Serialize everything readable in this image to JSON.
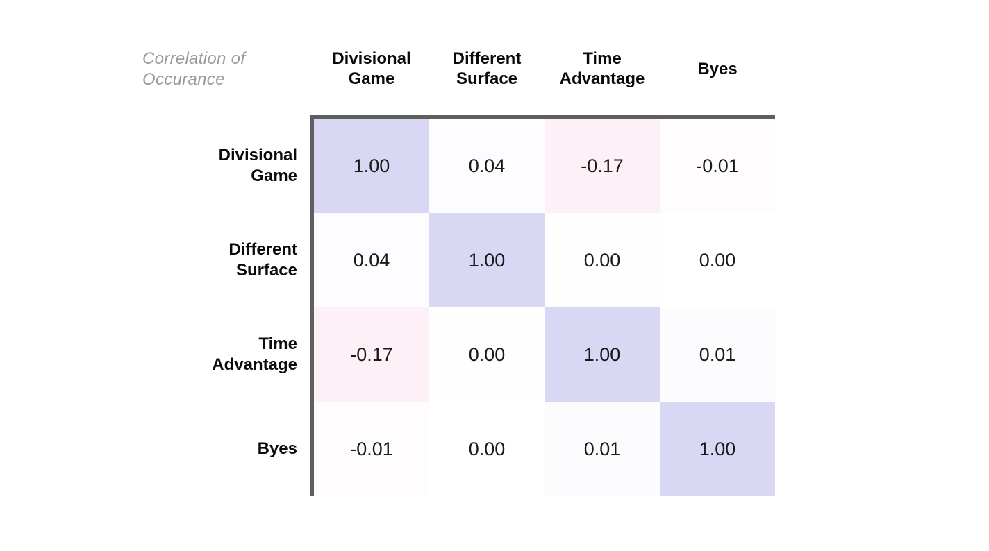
{
  "title": {
    "text": "Correlation of Occurance"
  },
  "matrix": {
    "columns": [
      "Divisional Game",
      "Different Surface",
      "Time Advantage",
      "Byes"
    ],
    "rows": [
      "Divisional Game",
      "Different Surface",
      "Time Advantage",
      "Byes"
    ],
    "values": [
      [
        "1.00",
        "0.04",
        "-0.17",
        "-0.01"
      ],
      [
        "0.04",
        "1.00",
        "0.00",
        "0.00"
      ],
      [
        "-0.17",
        "0.00",
        "1.00",
        "0.01"
      ],
      [
        "-0.01",
        "0.00",
        "0.01",
        "1.00"
      ]
    ],
    "cell_colors": [
      [
        "#d8d8f5",
        "#fdfdff",
        "#fdf0f6",
        "#fefcfd"
      ],
      [
        "#fdfdff",
        "#d8d8f5",
        "#fefeff",
        "#ffffff"
      ],
      [
        "#fdf0f6",
        "#fefeff",
        "#d8d8f5",
        "#fcfcfe"
      ],
      [
        "#fefcfd",
        "#ffffff",
        "#fcfcfe",
        "#d8d8f5"
      ]
    ]
  },
  "colors": {
    "border": "#5f5f5f",
    "title_gray": "#9b9b9b",
    "diagonal_fill": "#d8d8f5",
    "negative_fill": "#fdf0f6",
    "text": "#0a0a0a"
  },
  "chart_data": {
    "type": "heatmap",
    "title": "Correlation of Occurance",
    "x_categories": [
      "Divisional Game",
      "Different Surface",
      "Time Advantage",
      "Byes"
    ],
    "y_categories": [
      "Divisional Game",
      "Different Surface",
      "Time Advantage",
      "Byes"
    ],
    "values": [
      [
        1.0,
        0.04,
        -0.17,
        -0.01
      ],
      [
        0.04,
        1.0,
        0.0,
        0.0
      ],
      [
        -0.17,
        0.0,
        1.0,
        0.01
      ],
      [
        -0.01,
        0.0,
        0.01,
        1.0
      ]
    ],
    "value_range": [
      -1,
      1
    ],
    "cell_labels_shown": true,
    "colorscale": {
      "positive": "#d8d8f5",
      "zero": "#ffffff",
      "negative": "#fdf0f6"
    },
    "legend": "none",
    "grid": "off"
  }
}
